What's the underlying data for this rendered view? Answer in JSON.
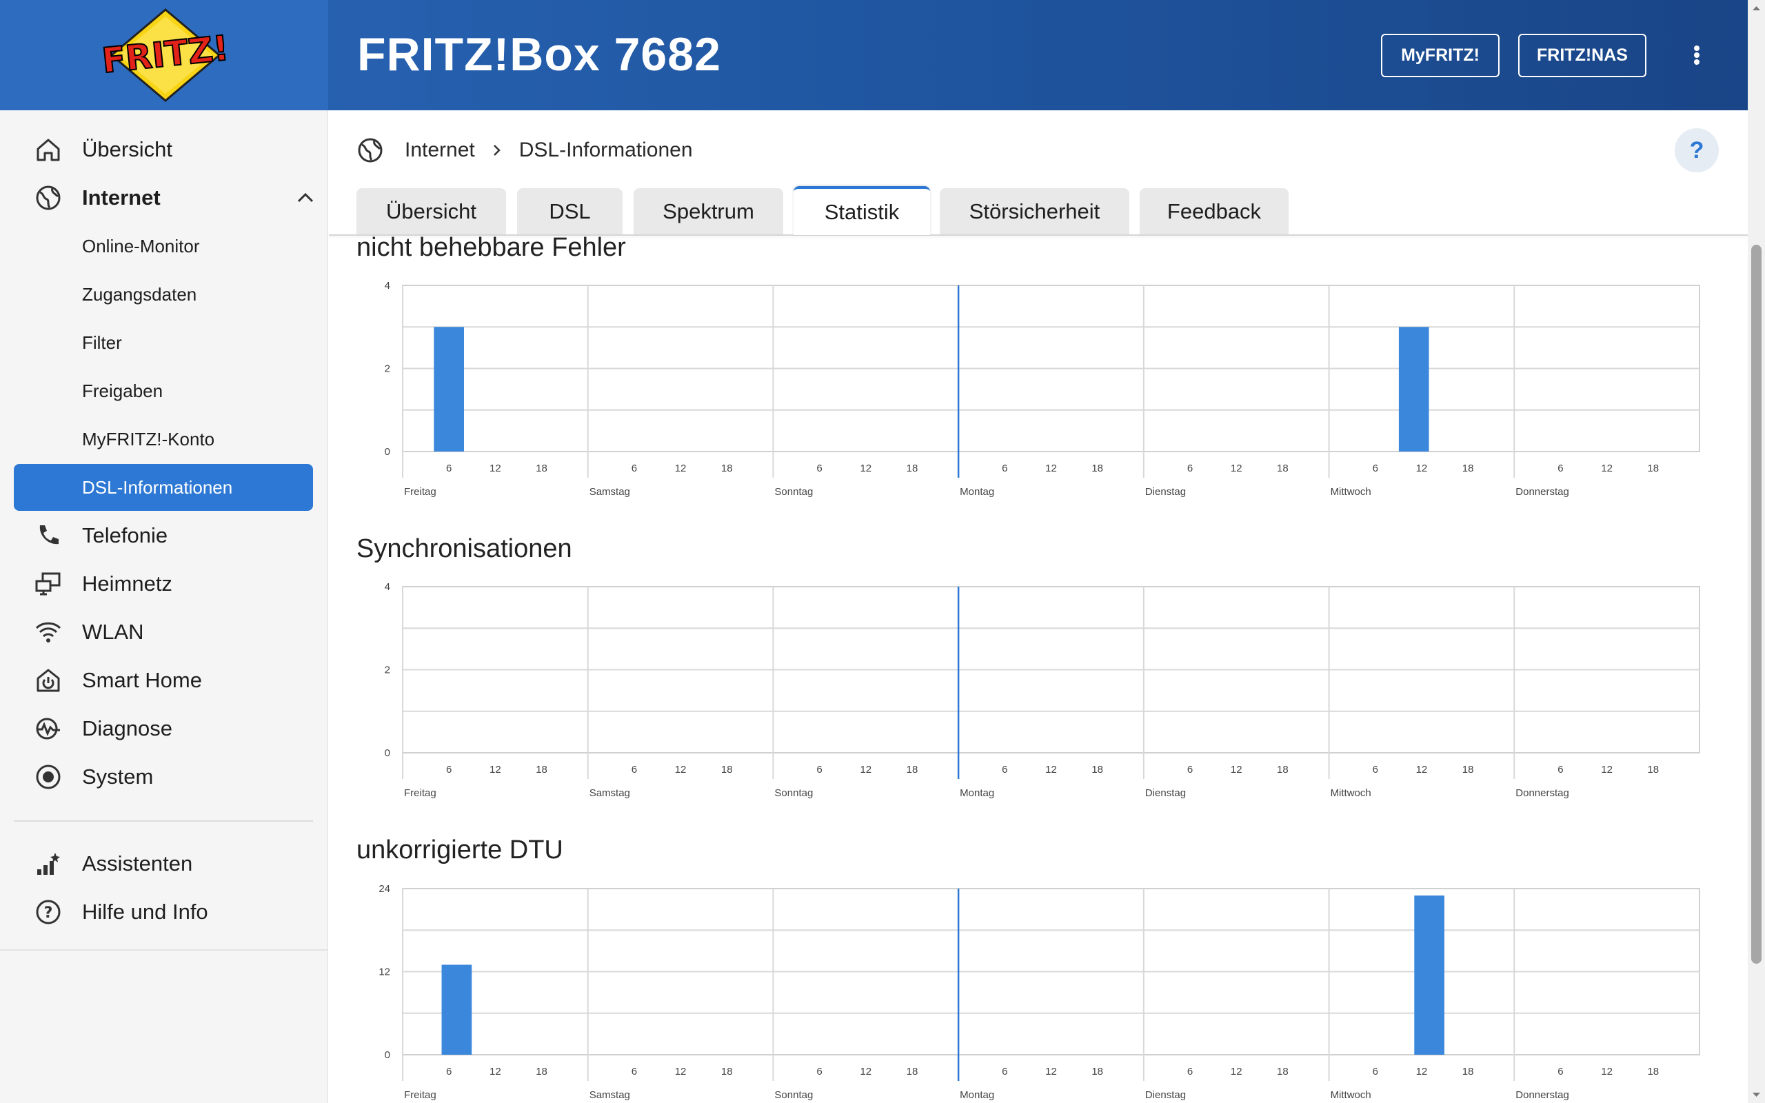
{
  "header": {
    "logo_text": "FRITZ!",
    "title": "FRITZ!Box 7682",
    "myfritz_label": "MyFRITZ!",
    "nas_label": "FRITZ!NAS",
    "menu_icon": "kebab-menu-icon"
  },
  "sidebar": {
    "items": [
      {
        "label": "Übersicht",
        "icon": "home-icon"
      },
      {
        "label": "Internet",
        "icon": "globe-icon"
      },
      {
        "label": "Online-Monitor"
      },
      {
        "label": "Zugangsdaten"
      },
      {
        "label": "Filter"
      },
      {
        "label": "Freigaben"
      },
      {
        "label": "MyFRITZ!-Konto"
      },
      {
        "label": "DSL-Informationen"
      },
      {
        "label": "Telefonie",
        "icon": "phone-icon"
      },
      {
        "label": "Heimnetz",
        "icon": "network-icon"
      },
      {
        "label": "WLAN",
        "icon": "wifi-icon"
      },
      {
        "label": "Smart Home",
        "icon": "smart-home-icon"
      },
      {
        "label": "Diagnose",
        "icon": "diagnose-icon"
      },
      {
        "label": "System",
        "icon": "system-icon"
      },
      {
        "label": "Assistenten",
        "icon": "wizard-icon"
      },
      {
        "label": "Hilfe und Info",
        "icon": "help-icon"
      }
    ]
  },
  "breadcrumb": {
    "parent": "Internet",
    "current": "DSL-Informationen"
  },
  "help_label": "?",
  "tabs": [
    {
      "label": "Übersicht"
    },
    {
      "label": "DSL"
    },
    {
      "label": "Spektrum"
    },
    {
      "label": "Statistik",
      "active": true
    },
    {
      "label": "Störsicherheit"
    },
    {
      "label": "Feedback"
    }
  ],
  "colors": {
    "accent": "#2c78d4",
    "header": "#1e539c",
    "bar": "#3b87db"
  },
  "chart_data": [
    {
      "type": "bar",
      "title": "nicht behebbare Fehler",
      "days": [
        "Freitag",
        "Samstag",
        "Sonntag",
        "Montag",
        "Dienstag",
        "Mittwoch",
        "Donnerstag"
      ],
      "hour_ticks": [
        "6",
        "12",
        "18"
      ],
      "ylim": [
        0,
        4
      ],
      "yticks": [
        "0",
        "2",
        "4"
      ],
      "marker_day": "Montag",
      "bars": [
        {
          "day": "Freitag",
          "hour": 6,
          "value": 3
        },
        {
          "day": "Mittwoch",
          "hour": 11,
          "value": 3
        }
      ]
    },
    {
      "type": "bar",
      "title": "Synchronisationen",
      "days": [
        "Freitag",
        "Samstag",
        "Sonntag",
        "Montag",
        "Dienstag",
        "Mittwoch",
        "Donnerstag"
      ],
      "hour_ticks": [
        "6",
        "12",
        "18"
      ],
      "ylim": [
        0,
        4
      ],
      "yticks": [
        "0",
        "2",
        "4"
      ],
      "marker_day": "Montag",
      "bars": []
    },
    {
      "type": "bar",
      "title": "unkorrigierte DTU",
      "days": [
        "Freitag",
        "Samstag",
        "Sonntag",
        "Montag",
        "Dienstag",
        "Mittwoch",
        "Donnerstag"
      ],
      "hour_ticks": [
        "6",
        "12",
        "18"
      ],
      "ylim": [
        0,
        24
      ],
      "yticks": [
        "0",
        "12",
        "24"
      ],
      "marker_day": "Montag",
      "bars": [
        {
          "day": "Freitag",
          "hour": 7,
          "value": 13
        },
        {
          "day": "Mittwoch",
          "hour": 13,
          "value": 23
        }
      ]
    }
  ]
}
